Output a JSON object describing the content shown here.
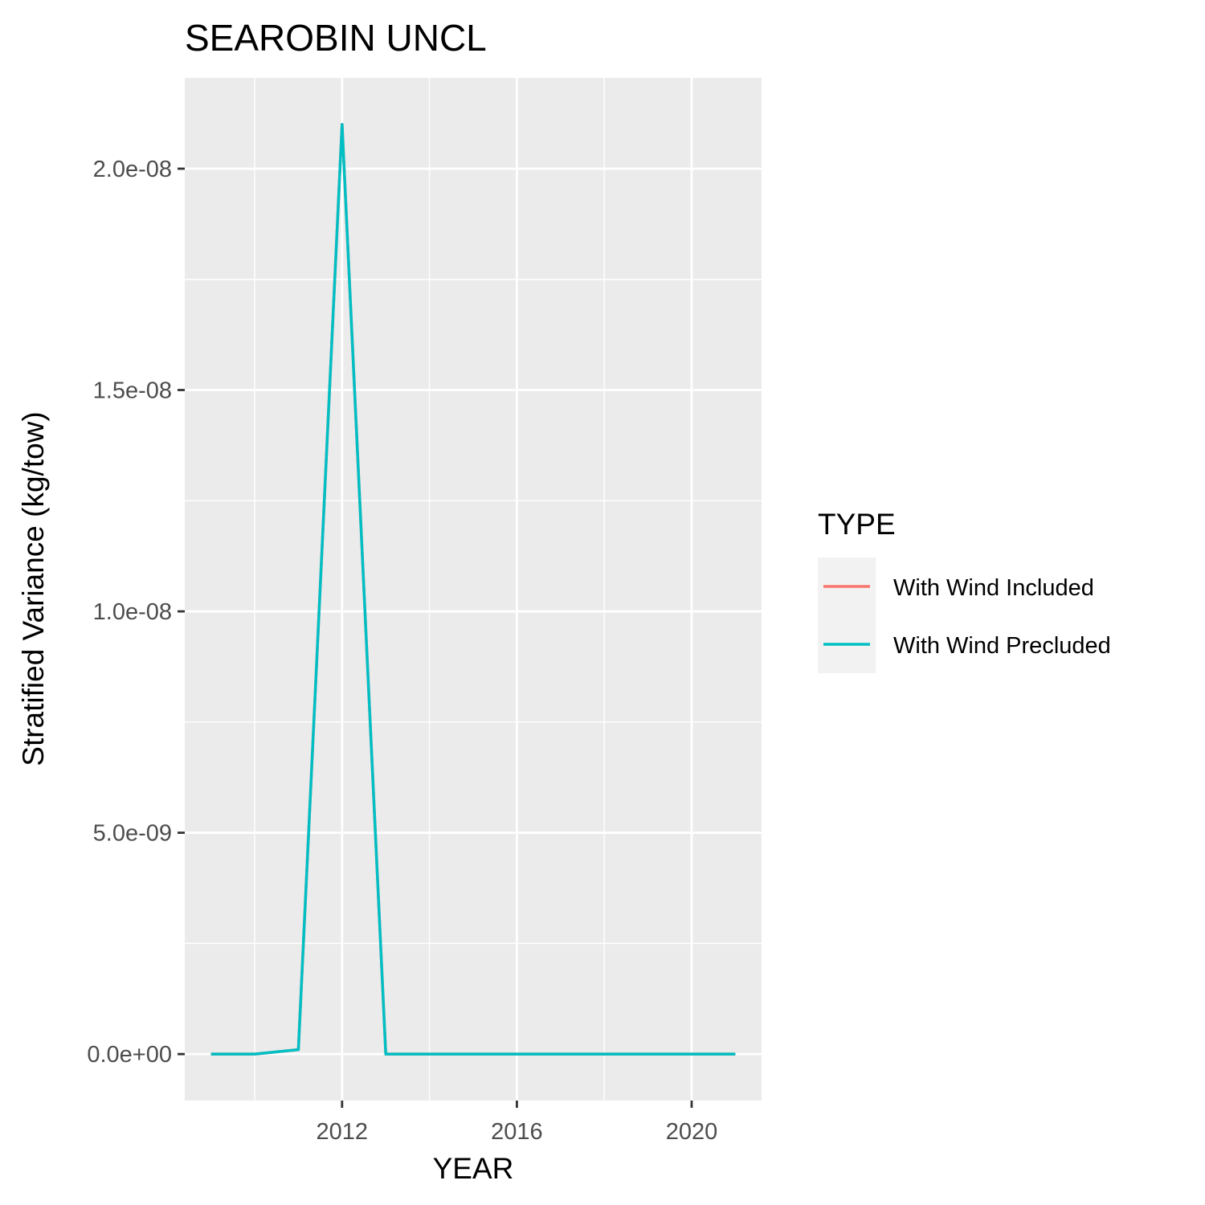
{
  "chart_data": {
    "type": "line",
    "title": "SEAROBIN UNCL",
    "xlabel": "YEAR",
    "ylabel": "Stratified Variance (kg/tow)",
    "xlim": [
      2008.4,
      2021.6
    ],
    "ylim": [
      -1.05e-09,
      2.205e-08
    ],
    "x_ticks": [
      2012,
      2016,
      2020
    ],
    "x_tick_labels": [
      "2012",
      "2016",
      "2020"
    ],
    "y_ticks": [
      0,
      5e-09,
      1e-08,
      1.5e-08,
      2e-08
    ],
    "y_tick_labels": [
      "0.0e+00",
      "5.0e-09",
      "1.0e-08",
      "1.5e-08",
      "2.0e-08"
    ],
    "grid": true,
    "legend": {
      "title": "TYPE",
      "placement": "right"
    },
    "series": [
      {
        "name": "With Wind Included",
        "color": "#F8766D",
        "x": [
          2009,
          2010,
          2011,
          2012,
          2013,
          2014,
          2015,
          2016,
          2017,
          2018,
          2019,
          2020,
          2021
        ],
        "y": [
          0,
          0,
          1e-10,
          2.1e-08,
          0,
          0,
          0,
          0,
          0,
          0,
          0,
          0,
          0
        ]
      },
      {
        "name": "With Wind Precluded",
        "color": "#00BFC4",
        "x": [
          2009,
          2010,
          2011,
          2012,
          2013,
          2014,
          2015,
          2016,
          2017,
          2018,
          2019,
          2020,
          2021
        ],
        "y": [
          0,
          0,
          1e-10,
          2.1e-08,
          0,
          0,
          0,
          0,
          0,
          0,
          0,
          0,
          0
        ]
      }
    ]
  }
}
